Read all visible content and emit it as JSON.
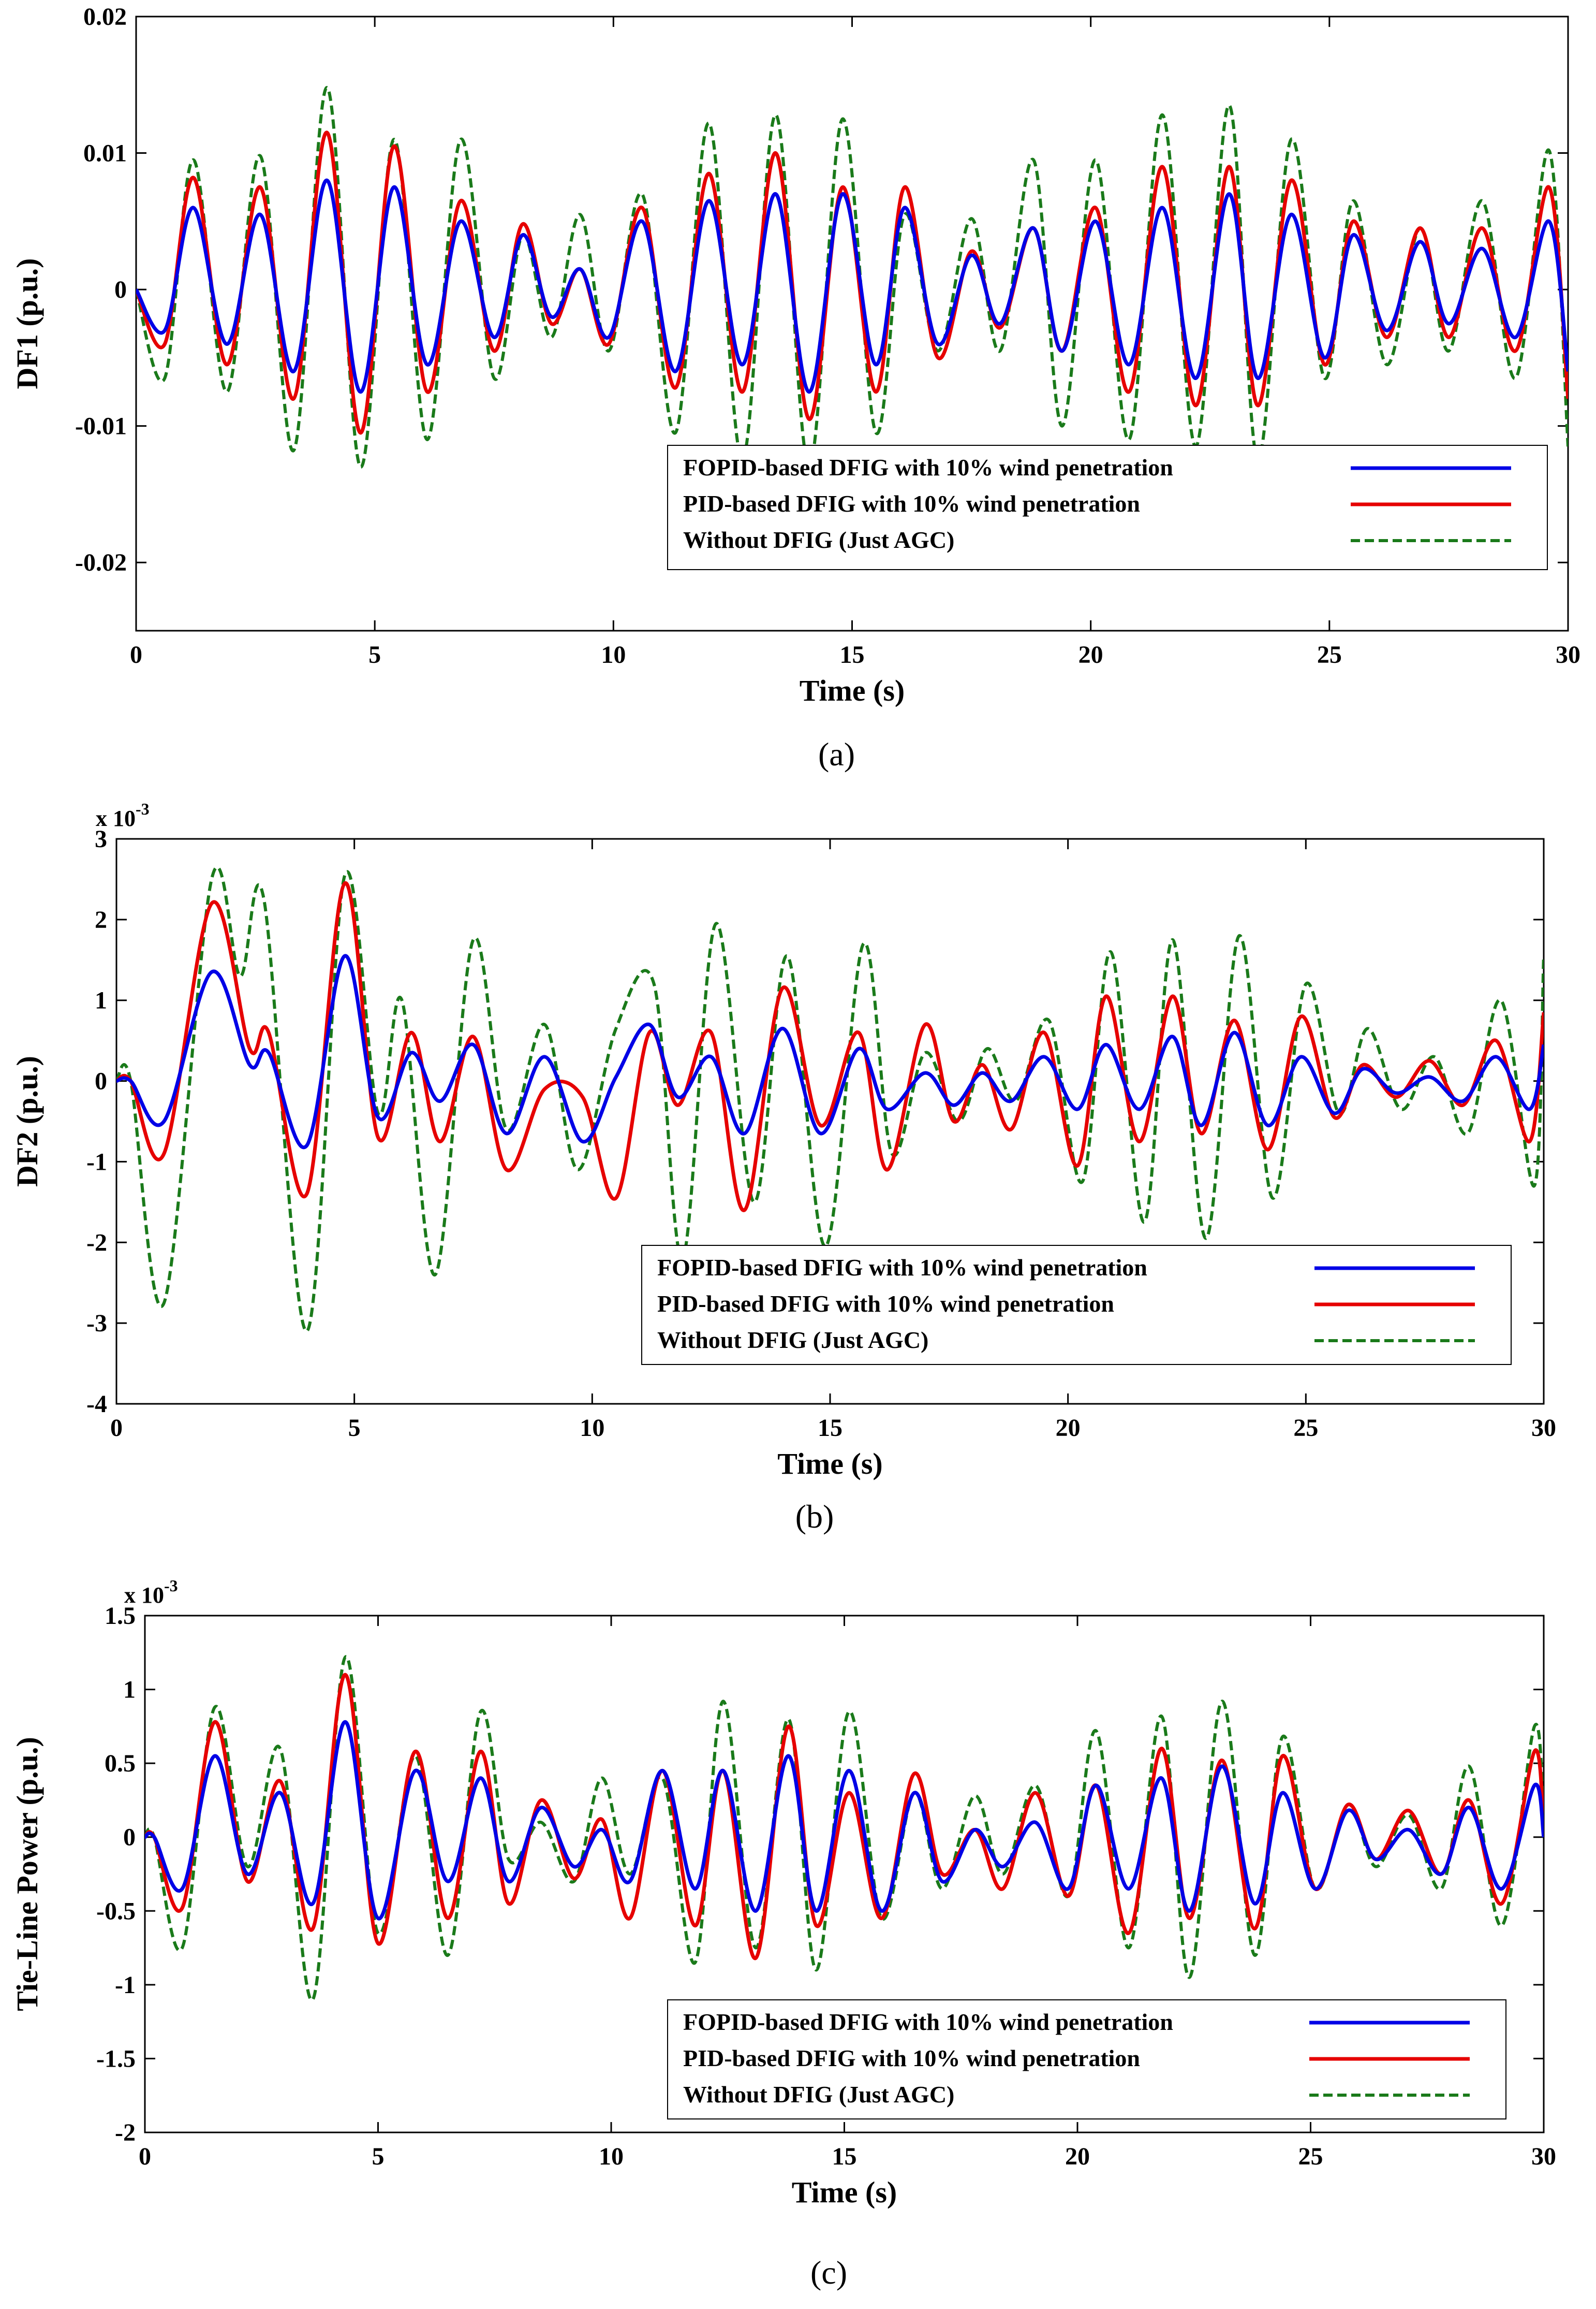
{
  "chart_data": [
    {
      "type": "line",
      "caption": "(a)",
      "xlabel": "Time (s)",
      "ylabel": "DF1 (p.u.)",
      "exponent_label": "",
      "xlim": [
        0,
        30
      ],
      "ylim": [
        -0.025,
        0.02
      ],
      "xticks": [
        0,
        5,
        10,
        15,
        20,
        25,
        30
      ],
      "xtick_labels": [
        "0",
        "5",
        "10",
        "15",
        "20",
        "25",
        "30"
      ],
      "yticks": [
        -0.02,
        -0.01,
        0,
        0.01,
        0.02
      ],
      "ytick_labels": [
        "-0.02",
        "-0.01",
        "0",
        "0.01",
        "0.02"
      ],
      "legend_position": "bottom-right",
      "series": [
        {
          "name": "FOPID-based DFIG with 10% wind penetration",
          "color": "#0000e6",
          "dash": "solid",
          "x": [
            0,
            0.6,
            1.2,
            1.9,
            2.6,
            3.3,
            4.0,
            4.7,
            5.4,
            6.1,
            6.8,
            7.5,
            8.1,
            8.7,
            9.3,
            9.9,
            10.6,
            11.3,
            12.0,
            12.7,
            13.4,
            14.1,
            14.8,
            15.5,
            16.1,
            16.8,
            17.5,
            18.1,
            18.8,
            19.4,
            20.1,
            20.8,
            21.5,
            22.2,
            22.9,
            23.5,
            24.2,
            24.9,
            25.5,
            26.2,
            26.9,
            27.5,
            28.2,
            28.9,
            29.6,
            30.0
          ],
          "y": [
            0,
            -0.003,
            0.006,
            -0.004,
            0.0055,
            -0.006,
            0.008,
            -0.0075,
            0.0075,
            -0.0055,
            0.005,
            -0.0035,
            0.004,
            -0.002,
            0.0015,
            -0.0035,
            0.005,
            -0.006,
            0.0065,
            -0.0055,
            0.007,
            -0.0075,
            0.007,
            -0.0055,
            0.006,
            -0.004,
            0.0025,
            -0.0025,
            0.0045,
            -0.0045,
            0.005,
            -0.0055,
            0.006,
            -0.0065,
            0.007,
            -0.0065,
            0.0055,
            -0.005,
            0.004,
            -0.003,
            0.0035,
            -0.0025,
            0.003,
            -0.0035,
            0.005,
            -0.006
          ]
        },
        {
          "name": "PID-based DFIG with 10% wind penetration",
          "color": "#e60000",
          "dash": "solid",
          "x": [
            0,
            0.6,
            1.2,
            1.9,
            2.6,
            3.3,
            4.0,
            4.7,
            5.4,
            6.1,
            6.8,
            7.5,
            8.1,
            8.7,
            9.3,
            9.9,
            10.6,
            11.3,
            12.0,
            12.7,
            13.4,
            14.1,
            14.8,
            15.5,
            16.1,
            16.8,
            17.5,
            18.1,
            18.8,
            19.4,
            20.1,
            20.8,
            21.5,
            22.2,
            22.9,
            23.5,
            24.2,
            24.9,
            25.5,
            26.2,
            26.9,
            27.5,
            28.2,
            28.9,
            29.6,
            30.0
          ],
          "y": [
            0,
            -0.004,
            0.0082,
            -0.0055,
            0.0075,
            -0.008,
            0.0115,
            -0.0105,
            0.0105,
            -0.0075,
            0.0065,
            -0.0045,
            0.0048,
            -0.0025,
            0.0015,
            -0.004,
            0.006,
            -0.0072,
            0.0085,
            -0.0075,
            0.01,
            -0.0095,
            0.0075,
            -0.0075,
            0.0075,
            -0.005,
            0.0028,
            -0.0028,
            0.0045,
            -0.0045,
            0.006,
            -0.0075,
            0.009,
            -0.0085,
            0.009,
            -0.0085,
            0.008,
            -0.0055,
            0.005,
            -0.0035,
            0.0045,
            -0.0035,
            0.0045,
            -0.0045,
            0.0075,
            -0.008
          ]
        },
        {
          "name": "Without DFIG (Just AGC)",
          "color": "#1a7a1a",
          "dash": "dashed",
          "x": [
            0,
            0.6,
            1.2,
            1.9,
            2.6,
            3.3,
            4.0,
            4.7,
            5.4,
            6.1,
            6.8,
            7.5,
            8.1,
            8.7,
            9.3,
            9.9,
            10.6,
            11.3,
            12.0,
            12.7,
            13.4,
            14.1,
            14.8,
            15.5,
            16.1,
            16.8,
            17.5,
            18.1,
            18.8,
            19.4,
            20.1,
            20.8,
            21.5,
            22.2,
            22.9,
            23.5,
            24.2,
            24.9,
            25.5,
            26.2,
            26.9,
            27.5,
            28.2,
            28.9,
            29.6,
            30.0
          ],
          "y": [
            0,
            -0.0065,
            0.0095,
            -0.0075,
            0.0098,
            -0.0118,
            0.0148,
            -0.013,
            0.011,
            -0.011,
            0.011,
            -0.0065,
            0.004,
            -0.0035,
            0.0055,
            -0.0045,
            0.007,
            -0.0105,
            0.0122,
            -0.0125,
            0.0128,
            -0.013,
            0.0125,
            -0.0105,
            0.0055,
            -0.0045,
            0.0052,
            -0.0045,
            0.0095,
            -0.01,
            0.0095,
            -0.011,
            0.0128,
            -0.0115,
            0.0135,
            -0.0125,
            0.011,
            -0.0065,
            0.0065,
            -0.0055,
            0.0045,
            -0.0045,
            0.0065,
            -0.0065,
            0.0102,
            -0.0115
          ]
        }
      ]
    },
    {
      "type": "line",
      "caption": "(b)",
      "xlabel": "Time (s)",
      "ylabel": "DF2 (p.u.)",
      "exponent_label": "x 10",
      "exponent_power": "-3",
      "xlim": [
        0,
        30
      ],
      "ylim": [
        -4,
        3
      ],
      "xticks": [
        0,
        5,
        10,
        15,
        20,
        25,
        30
      ],
      "xtick_labels": [
        "0",
        "5",
        "10",
        "15",
        "20",
        "25",
        "30"
      ],
      "yticks": [
        -4,
        -3,
        -2,
        -1,
        0,
        1,
        2,
        3
      ],
      "ytick_labels": [
        "-4",
        "-3",
        "-2",
        "-1",
        "0",
        "1",
        "2",
        "3"
      ],
      "legend_position": "bottom-right",
      "series": [
        {
          "name": "FOPID-based DFIG with 10% wind penetration",
          "color": "#0000e6",
          "dash": "solid",
          "x": [
            0,
            0.3,
            1.0,
            2.0,
            2.8,
            3.2,
            4.0,
            4.8,
            5.5,
            6.2,
            6.8,
            7.5,
            8.2,
            9.0,
            9.8,
            10.5,
            11.2,
            11.8,
            12.5,
            13.2,
            14.0,
            14.8,
            15.6,
            16.2,
            17.0,
            17.6,
            18.2,
            18.8,
            19.5,
            20.2,
            20.8,
            21.5,
            22.2,
            22.8,
            23.5,
            24.2,
            24.9,
            25.6,
            26.2,
            26.9,
            27.6,
            28.3,
            29.0,
            29.7,
            30.0
          ],
          "y": [
            0,
            0,
            -0.5,
            1.35,
            0.2,
            0.35,
            -0.8,
            1.55,
            -0.45,
            0.35,
            -0.25,
            0.45,
            -0.65,
            0.3,
            -0.75,
            0.05,
            0.7,
            -0.2,
            0.3,
            -0.65,
            0.65,
            -0.65,
            0.4,
            -0.35,
            0.1,
            -0.3,
            0.1,
            -0.25,
            0.3,
            -0.35,
            0.45,
            -0.35,
            0.55,
            -0.55,
            0.6,
            -0.55,
            0.3,
            -0.4,
            0.15,
            -0.15,
            0.05,
            -0.25,
            0.3,
            -0.35,
            0.45
          ]
        },
        {
          "name": "PID-based DFIG with 10% wind penetration",
          "color": "#e60000",
          "dash": "solid",
          "x": [
            0,
            0.3,
            1.0,
            2.0,
            2.8,
            3.2,
            4.0,
            4.8,
            5.5,
            6.2,
            6.8,
            7.5,
            8.2,
            9.0,
            9.8,
            10.5,
            11.2,
            11.8,
            12.5,
            13.2,
            14.0,
            14.8,
            15.6,
            16.2,
            17.0,
            17.6,
            18.2,
            18.8,
            19.5,
            20.2,
            20.8,
            21.5,
            22.2,
            22.8,
            23.5,
            24.2,
            24.9,
            25.6,
            26.2,
            26.9,
            27.6,
            28.3,
            29.0,
            29.7,
            30.0
          ],
          "y": [
            0,
            0,
            -0.9,
            2.2,
            0.4,
            0.6,
            -1.4,
            2.45,
            -0.7,
            0.6,
            -0.75,
            0.55,
            -1.1,
            -0.1,
            -0.2,
            -1.45,
            0.6,
            -0.3,
            0.6,
            -1.6,
            1.15,
            -0.55,
            0.6,
            -1.1,
            0.7,
            -0.5,
            0.2,
            -0.6,
            0.6,
            -1.05,
            1.05,
            -0.75,
            1.05,
            -0.65,
            0.75,
            -0.85,
            0.8,
            -0.45,
            0.2,
            -0.2,
            0.25,
            -0.3,
            0.5,
            -0.75,
            0.85
          ]
        },
        {
          "name": "Without DFIG (Just AGC)",
          "color": "#1a7a1a",
          "dash": "dashed",
          "x": [
            0,
            0.3,
            1.0,
            2.0,
            2.6,
            3.1,
            4.0,
            4.8,
            5.5,
            6.0,
            6.7,
            7.5,
            8.2,
            9.0,
            9.7,
            10.5,
            11.3,
            11.9,
            12.6,
            13.4,
            14.1,
            14.9,
            15.7,
            16.3,
            17.0,
            17.7,
            18.3,
            18.9,
            19.6,
            20.3,
            20.9,
            21.6,
            22.2,
            22.9,
            23.6,
            24.3,
            25.0,
            25.7,
            26.3,
            27.0,
            27.7,
            28.4,
            29.1,
            29.8,
            30.0
          ],
          "y": [
            0,
            0,
            -2.75,
            2.5,
            1.3,
            2.25,
            -3.1,
            2.55,
            -0.4,
            1.0,
            -2.4,
            1.75,
            -0.6,
            0.7,
            -1.1,
            0.65,
            1.2,
            -2.2,
            1.95,
            -1.5,
            1.55,
            -2.05,
            1.7,
            -0.9,
            0.35,
            -0.5,
            0.4,
            -0.25,
            0.75,
            -1.25,
            1.6,
            -1.75,
            1.75,
            -1.95,
            1.8,
            -1.45,
            1.2,
            -0.4,
            0.65,
            -0.35,
            0.3,
            -0.65,
            1.0,
            -1.3,
            1.55
          ]
        }
      ]
    },
    {
      "type": "line",
      "caption": "(c)",
      "xlabel": "Time (s)",
      "ylabel": "Tie-Line Power (p.u.)",
      "exponent_label": "x 10",
      "exponent_power": "-3",
      "xlim": [
        0,
        30
      ],
      "ylim": [
        -2,
        1.5
      ],
      "xticks": [
        0,
        5,
        10,
        15,
        20,
        25,
        30
      ],
      "xtick_labels": [
        "0",
        "5",
        "10",
        "15",
        "20",
        "25",
        "30"
      ],
      "yticks": [
        -2,
        -1.5,
        -1,
        -0.5,
        0,
        0.5,
        1,
        1.5
      ],
      "ytick_labels": [
        "-2",
        "-1.5",
        "-1",
        "-0.5",
        "0",
        "0.5",
        "1",
        "1.5"
      ],
      "legend_position": "bottom-right",
      "series": [
        {
          "name": "FOPID-based DFIG with 10% wind penetration",
          "color": "#0000e6",
          "dash": "solid",
          "x": [
            0,
            0.2,
            0.8,
            1.5,
            2.2,
            2.9,
            3.6,
            4.3,
            5.0,
            5.8,
            6.5,
            7.2,
            7.8,
            8.5,
            9.2,
            9.8,
            10.4,
            11.1,
            11.8,
            12.4,
            13.1,
            13.8,
            14.4,
            15.1,
            15.8,
            16.5,
            17.1,
            17.8,
            18.4,
            19.1,
            19.8,
            20.4,
            21.1,
            21.8,
            22.4,
            23.1,
            23.8,
            24.4,
            25.1,
            25.8,
            26.4,
            27.1,
            27.8,
            28.4,
            29.1,
            29.8,
            30.0
          ],
          "y": [
            0,
            0,
            -0.35,
            0.55,
            -0.25,
            0.3,
            -0.45,
            0.78,
            -0.55,
            0.45,
            -0.3,
            0.4,
            -0.3,
            0.2,
            -0.2,
            0.05,
            -0.3,
            0.45,
            -0.35,
            0.45,
            -0.5,
            0.55,
            -0.5,
            0.45,
            -0.5,
            0.3,
            -0.3,
            0.05,
            -0.2,
            0.1,
            -0.35,
            0.35,
            -0.35,
            0.4,
            -0.5,
            0.48,
            -0.45,
            0.3,
            -0.35,
            0.18,
            -0.15,
            0.05,
            -0.25,
            0.2,
            -0.35,
            0.35,
            0.0
          ]
        },
        {
          "name": "PID-based DFIG with 10% wind penetration",
          "color": "#e60000",
          "dash": "solid",
          "x": [
            0,
            0.2,
            0.8,
            1.5,
            2.2,
            2.9,
            3.6,
            4.3,
            5.0,
            5.8,
            6.5,
            7.2,
            7.8,
            8.5,
            9.2,
            9.8,
            10.4,
            11.1,
            11.8,
            12.4,
            13.1,
            13.8,
            14.4,
            15.1,
            15.8,
            16.5,
            17.1,
            17.8,
            18.4,
            19.1,
            19.8,
            20.4,
            21.1,
            21.8,
            22.4,
            23.1,
            23.8,
            24.4,
            25.1,
            25.8,
            26.4,
            27.1,
            27.8,
            28.4,
            29.1,
            29.8,
            30.0
          ],
          "y": [
            0,
            0,
            -0.48,
            0.78,
            -0.3,
            0.38,
            -0.62,
            1.1,
            -0.72,
            0.58,
            -0.55,
            0.58,
            -0.45,
            0.25,
            -0.28,
            0.12,
            -0.55,
            0.45,
            -0.6,
            0.45,
            -0.82,
            0.75,
            -0.6,
            0.3,
            -0.55,
            0.43,
            -0.25,
            0.05,
            -0.35,
            0.3,
            -0.4,
            0.35,
            -0.65,
            0.6,
            -0.55,
            0.52,
            -0.62,
            0.55,
            -0.35,
            0.22,
            -0.15,
            0.18,
            -0.25,
            0.25,
            -0.45,
            0.58,
            0.05
          ]
        },
        {
          "name": "Without DFIG (Just AGC)",
          "color": "#1a7a1a",
          "dash": "dashed",
          "x": [
            0,
            0.2,
            0.8,
            1.5,
            2.2,
            2.9,
            3.6,
            4.3,
            5.0,
            5.8,
            6.5,
            7.2,
            7.8,
            8.5,
            9.2,
            9.8,
            10.4,
            11.1,
            11.8,
            12.4,
            13.1,
            13.8,
            14.4,
            15.1,
            15.8,
            16.5,
            17.1,
            17.8,
            18.4,
            19.1,
            19.8,
            20.4,
            21.1,
            21.8,
            22.4,
            23.1,
            23.8,
            24.4,
            25.1,
            25.8,
            26.4,
            27.1,
            27.8,
            28.4,
            29.1,
            29.8,
            30.0
          ],
          "y": [
            0,
            0,
            -0.75,
            0.88,
            -0.2,
            0.6,
            -1.1,
            1.22,
            -0.65,
            0.55,
            -0.8,
            0.85,
            -0.15,
            0.1,
            -0.3,
            0.4,
            -0.25,
            0.4,
            -0.85,
            0.92,
            -0.75,
            0.8,
            -0.9,
            0.85,
            -0.55,
            0.3,
            -0.35,
            0.28,
            -0.25,
            0.35,
            -0.4,
            0.72,
            -0.75,
            0.82,
            -0.95,
            0.92,
            -0.8,
            0.68,
            -0.35,
            0.22,
            -0.2,
            0.15,
            -0.35,
            0.48,
            -0.6,
            0.75,
            0.1
          ]
        }
      ]
    }
  ]
}
